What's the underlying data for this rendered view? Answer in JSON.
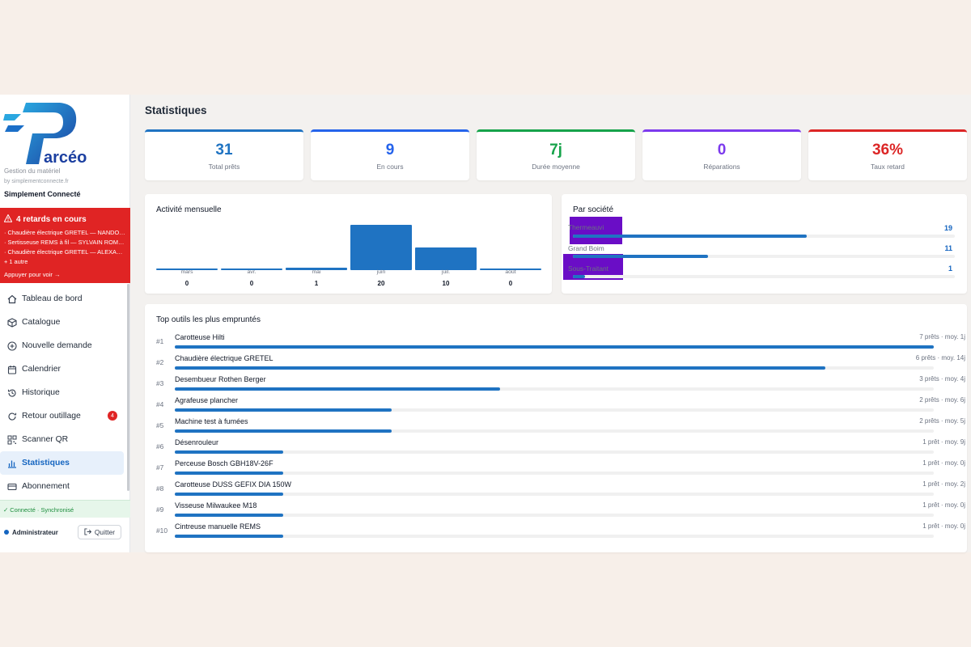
{
  "brand": {
    "logo_text": "Parcéo",
    "subtitle": "Gestion du matériel",
    "by": "by simplementconnecte.fr",
    "company": "Simplement Connecté"
  },
  "alert": {
    "title": "4 retards en cours",
    "lines": [
      "· Chaudière électrique GRETEL — NANDOUZ…",
      "· Sertisseuse REMS à fil — SYLVAIN ROMA…",
      "· Chaudière électrique GRETEL — ALEXANDRE…"
    ],
    "more": "+ 1 autre",
    "action": "Appuyer pour voir →"
  },
  "nav": {
    "items": [
      {
        "label": "Tableau de bord",
        "icon": "home-icon"
      },
      {
        "label": "Catalogue",
        "icon": "box-icon"
      },
      {
        "label": "Nouvelle demande",
        "icon": "plus-circle-icon"
      },
      {
        "label": "Calendrier",
        "icon": "calendar-icon"
      },
      {
        "label": "Historique",
        "icon": "history-icon"
      },
      {
        "label": "Retour outillage",
        "icon": "return-icon",
        "badge": "4"
      },
      {
        "label": "Scanner QR",
        "icon": "qr-icon"
      },
      {
        "label": "Statistiques",
        "icon": "chart-icon",
        "active": true
      },
      {
        "label": "Abonnement",
        "icon": "card-icon"
      }
    ]
  },
  "status": {
    "sync": "✓ Connecté · Synchronisé"
  },
  "user": {
    "name": "Administrateur",
    "quit_label": "Quitter"
  },
  "page": {
    "title": "Statistiques"
  },
  "kpis": [
    {
      "value": "31",
      "label": "Total prêts",
      "color": "#1f73c2"
    },
    {
      "value": "9",
      "label": "En cours",
      "color": "#2563eb"
    },
    {
      "value": "7j",
      "label": "Durée moyenne",
      "color": "#16a34a"
    },
    {
      "value": "0",
      "label": "Réparations",
      "color": "#7c3aed"
    },
    {
      "value": "36%",
      "label": "Taux retard",
      "color": "#dc2626"
    }
  ],
  "monthly": {
    "title": "Activité mensuelle",
    "months": [
      {
        "name": "mars",
        "value": 0
      },
      {
        "name": "avr.",
        "value": 0
      },
      {
        "name": "mai",
        "value": 1
      },
      {
        "name": "juin",
        "value": 20
      },
      {
        "name": "juil.",
        "value": 10
      },
      {
        "name": "août",
        "value": 0
      }
    ]
  },
  "companies": {
    "title": "Par société",
    "items": [
      {
        "name": "Thermeauvi",
        "value": 19,
        "max": 31
      },
      {
        "name": "Grand Boim",
        "value": 11,
        "max": 31
      },
      {
        "name": "Sous-Traitant",
        "value": 1,
        "max": 31
      }
    ]
  },
  "top_tools": {
    "title": "Top outils les plus empruntés",
    "items": [
      {
        "rank": "#1",
        "name": "Carotteuse Hilti",
        "meta": "7 prêts · moy. 1j",
        "value": 7
      },
      {
        "rank": "#2",
        "name": "Chaudière électrique GRETEL",
        "meta": "6 prêts · moy. 14j",
        "value": 6
      },
      {
        "rank": "#3",
        "name": "Desembueur Rothen Berger",
        "meta": "3 prêts · moy. 4j",
        "value": 3
      },
      {
        "rank": "#4",
        "name": "Agrafeuse plancher",
        "meta": "2 prêts · moy. 6j",
        "value": 2
      },
      {
        "rank": "#5",
        "name": "Machine test à fumées",
        "meta": "2 prêts · moy. 5j",
        "value": 2
      },
      {
        "rank": "#6",
        "name": "Désenrouleur",
        "meta": "1 prêt · moy. 9j",
        "value": 1
      },
      {
        "rank": "#7",
        "name": "Perceuse Bosch GBH18V-26F",
        "meta": "1 prêt · moy. 0j",
        "value": 1
      },
      {
        "rank": "#8",
        "name": "Carotteuse DUSS GEFIX DIA 150W",
        "meta": "1 prêt · moy. 2j",
        "value": 1
      },
      {
        "rank": "#9",
        "name": "Visseuse Milwaukee M18",
        "meta": "1 prêt · moy. 0j",
        "value": 1
      },
      {
        "rank": "#10",
        "name": "Cintreuse manuelle REMS",
        "meta": "1 prêt · moy. 0j",
        "value": 1
      }
    ]
  }
}
